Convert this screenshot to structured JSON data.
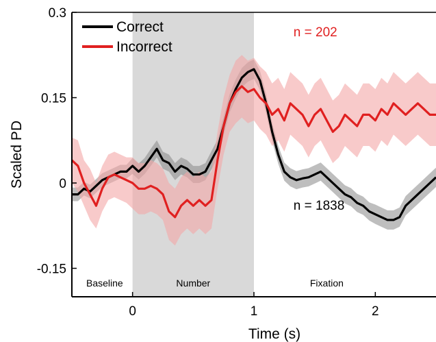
{
  "chart_data": {
    "type": "line",
    "xlabel": "Time (s)",
    "ylabel": "Scaled PD",
    "xlim": [
      -0.5,
      2.5
    ],
    "ylim": [
      -0.2,
      0.3
    ],
    "xticks": [
      0,
      1,
      2
    ],
    "xtick_labels": [
      "0",
      "1",
      "2"
    ],
    "yticks": [
      0.3,
      0.15,
      0,
      -0.15
    ],
    "ytick_labels": [
      "0.3",
      "0.15",
      "0",
      "-0.15"
    ],
    "shaded_region": {
      "x": [
        0,
        1
      ],
      "color": "#d9d9d9"
    },
    "phases": [
      {
        "label": "Baseline",
        "x": -0.23
      },
      {
        "label": "Number",
        "x": 0.5
      },
      {
        "label": "Fixation",
        "x": 1.6
      }
    ],
    "annotations": [
      {
        "text": "n = 202",
        "x": 1.45,
        "y": 0.265,
        "color": "#e02020"
      },
      {
        "text": "n = 1838",
        "x": 1.45,
        "y": -0.04,
        "color": "#000000"
      }
    ],
    "legend": {
      "placement": "top-left"
    },
    "series": [
      {
        "name": "Correct",
        "color": "#000000",
        "band_color": "#888888",
        "x": [
          -0.5,
          -0.45,
          -0.4,
          -0.35,
          -0.3,
          -0.25,
          -0.2,
          -0.15,
          -0.1,
          -0.05,
          0,
          0.05,
          0.1,
          0.15,
          0.2,
          0.25,
          0.3,
          0.35,
          0.4,
          0.45,
          0.5,
          0.55,
          0.6,
          0.65,
          0.7,
          0.75,
          0.8,
          0.85,
          0.9,
          0.95,
          1.0,
          1.05,
          1.1,
          1.15,
          1.2,
          1.25,
          1.3,
          1.35,
          1.4,
          1.45,
          1.5,
          1.55,
          1.6,
          1.65,
          1.7,
          1.75,
          1.8,
          1.85,
          1.9,
          1.95,
          2.0,
          2.05,
          2.1,
          2.15,
          2.2,
          2.25,
          2.3,
          2.35,
          2.4,
          2.45,
          2.5
        ],
        "y": [
          -0.02,
          -0.02,
          -0.01,
          -0.015,
          -0.005,
          0.005,
          0.01,
          0.015,
          0.02,
          0.02,
          0.03,
          0.02,
          0.03,
          0.045,
          0.06,
          0.04,
          0.035,
          0.02,
          0.03,
          0.025,
          0.015,
          0.015,
          0.02,
          0.04,
          0.06,
          0.1,
          0.14,
          0.165,
          0.185,
          0.195,
          0.2,
          0.18,
          0.14,
          0.09,
          0.05,
          0.02,
          0.01,
          0.005,
          0.008,
          0.01,
          0.015,
          0.02,
          0.01,
          0.0,
          -0.01,
          -0.02,
          -0.025,
          -0.035,
          -0.04,
          -0.05,
          -0.055,
          -0.06,
          -0.065,
          -0.065,
          -0.06,
          -0.04,
          -0.03,
          -0.02,
          -0.01,
          0.0,
          0.01
        ],
        "band": [
          0.012,
          0.012,
          0.012,
          0.012,
          0.012,
          0.012,
          0.012,
          0.012,
          0.012,
          0.012,
          0.014,
          0.014,
          0.014,
          0.015,
          0.015,
          0.015,
          0.015,
          0.015,
          0.015,
          0.015,
          0.015,
          0.015,
          0.015,
          0.016,
          0.016,
          0.016,
          0.016,
          0.017,
          0.017,
          0.017,
          0.017,
          0.017,
          0.017,
          0.016,
          0.016,
          0.016,
          0.016,
          0.016,
          0.016,
          0.016,
          0.016,
          0.016,
          0.016,
          0.016,
          0.016,
          0.016,
          0.016,
          0.016,
          0.016,
          0.016,
          0.017,
          0.017,
          0.017,
          0.017,
          0.017,
          0.017,
          0.017,
          0.017,
          0.017,
          0.017,
          0.017
        ]
      },
      {
        "name": "Incorrect",
        "color": "#e02020",
        "band_color": "#f4a6a6",
        "x": [
          -0.5,
          -0.45,
          -0.4,
          -0.35,
          -0.3,
          -0.25,
          -0.2,
          -0.15,
          -0.1,
          -0.05,
          0,
          0.05,
          0.1,
          0.15,
          0.2,
          0.25,
          0.3,
          0.35,
          0.4,
          0.45,
          0.5,
          0.55,
          0.6,
          0.65,
          0.7,
          0.75,
          0.8,
          0.85,
          0.9,
          0.95,
          1.0,
          1.05,
          1.1,
          1.15,
          1.2,
          1.25,
          1.3,
          1.35,
          1.4,
          1.45,
          1.5,
          1.55,
          1.6,
          1.65,
          1.7,
          1.75,
          1.8,
          1.85,
          1.9,
          1.95,
          2.0,
          2.05,
          2.1,
          2.15,
          2.2,
          2.25,
          2.3,
          2.35,
          2.4,
          2.45,
          2.5
        ],
        "y": [
          0.04,
          0.03,
          0.0,
          -0.02,
          -0.04,
          -0.01,
          0.01,
          0.015,
          0.01,
          0.005,
          0.0,
          -0.01,
          -0.01,
          -0.005,
          -0.01,
          -0.02,
          -0.05,
          -0.06,
          -0.04,
          -0.03,
          -0.04,
          -0.03,
          -0.04,
          -0.03,
          0.04,
          0.1,
          0.14,
          0.16,
          0.17,
          0.16,
          0.165,
          0.15,
          0.14,
          0.12,
          0.13,
          0.11,
          0.14,
          0.13,
          0.12,
          0.1,
          0.12,
          0.13,
          0.11,
          0.09,
          0.1,
          0.12,
          0.11,
          0.1,
          0.12,
          0.12,
          0.11,
          0.13,
          0.12,
          0.14,
          0.13,
          0.12,
          0.13,
          0.14,
          0.13,
          0.12,
          0.12
        ],
        "band": [
          0.04,
          0.045,
          0.04,
          0.045,
          0.04,
          0.04,
          0.04,
          0.04,
          0.04,
          0.04,
          0.045,
          0.045,
          0.045,
          0.045,
          0.045,
          0.045,
          0.05,
          0.05,
          0.05,
          0.05,
          0.05,
          0.05,
          0.05,
          0.05,
          0.05,
          0.05,
          0.05,
          0.055,
          0.055,
          0.055,
          0.055,
          0.055,
          0.055,
          0.055,
          0.055,
          0.055,
          0.055,
          0.055,
          0.055,
          0.055,
          0.055,
          0.055,
          0.055,
          0.055,
          0.055,
          0.055,
          0.055,
          0.055,
          0.055,
          0.055,
          0.055,
          0.055,
          0.055,
          0.055,
          0.055,
          0.055,
          0.055,
          0.055,
          0.055,
          0.055,
          0.055
        ]
      }
    ]
  }
}
